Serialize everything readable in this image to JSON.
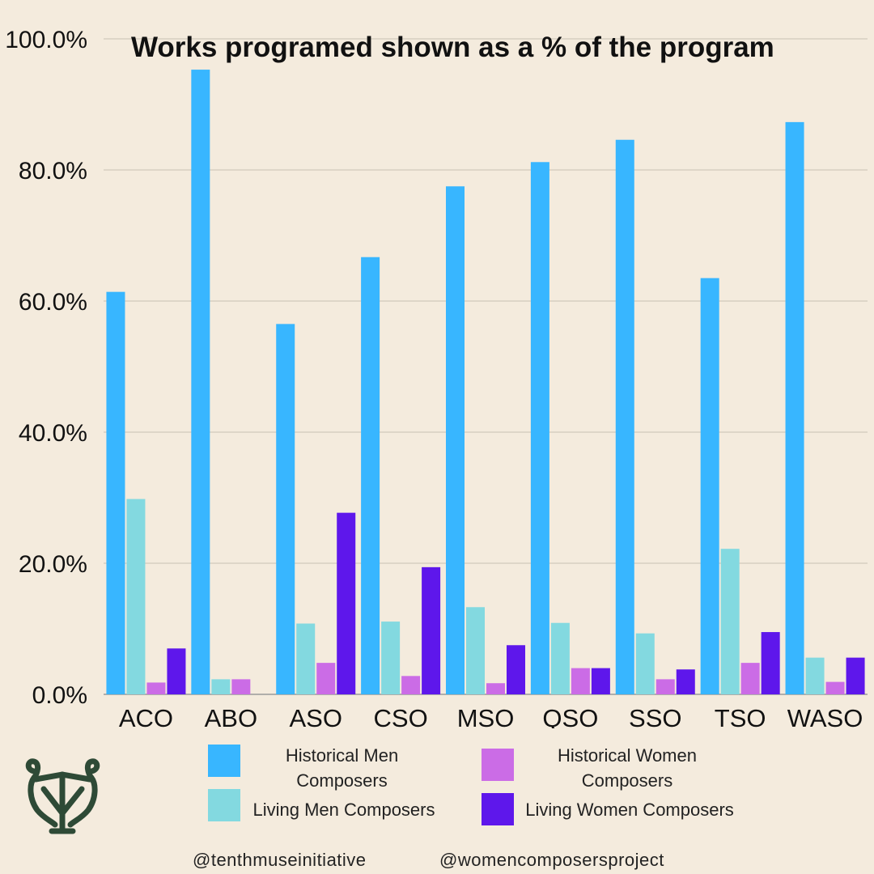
{
  "chart_data": {
    "type": "bar",
    "title": "Works programed shown as a % of the program",
    "xlabel": "",
    "ylabel": "",
    "ylim": [
      0,
      100
    ],
    "yticks": [
      "0.0%",
      "20.0%",
      "40.0%",
      "60.0%",
      "80.0%",
      "100.0%"
    ],
    "grid": true,
    "categories": [
      "ACO",
      "ABO",
      "ASO",
      "CSO",
      "MSO",
      "QSO",
      "SSO",
      "TSO",
      "WASO"
    ],
    "series": [
      {
        "name": "Historical Men Composers",
        "color": "#38B6FF",
        "values": [
          61.4,
          95.3,
          56.5,
          66.7,
          77.5,
          81.2,
          84.6,
          63.5,
          87.3
        ]
      },
      {
        "name": "Living Men Composers",
        "color": "#83D9E0",
        "values": [
          29.8,
          2.3,
          10.8,
          11.1,
          13.3,
          10.9,
          9.3,
          22.2,
          5.6
        ]
      },
      {
        "name": "Historical Women Composers",
        "color": "#CB6CE6",
        "values": [
          1.8,
          2.3,
          4.8,
          2.8,
          1.7,
          4.0,
          2.3,
          4.8,
          1.9
        ]
      },
      {
        "name": "Living Women Composers",
        "color": "#5E17EB",
        "values": [
          7.0,
          0,
          27.7,
          19.4,
          7.5,
          4.0,
          3.8,
          9.5,
          5.6
        ]
      }
    ]
  },
  "legend": {
    "items": [
      {
        "label": "Historical Men\nComposers",
        "color": "#38B6FF"
      },
      {
        "label": "Historical Women\nComposers",
        "color": "#CB6CE6"
      },
      {
        "label": "Living Men Composers",
        "color": "#83D9E0"
      },
      {
        "label": "Living Women Composers",
        "color": "#5E17EB"
      }
    ]
  },
  "footer": {
    "left_handle": "@tenthmuseinitiative",
    "right_handle": "@womencomposersproject"
  },
  "logo": {
    "icon": "lyre-monogram-icon",
    "color": "#2E4A36"
  }
}
